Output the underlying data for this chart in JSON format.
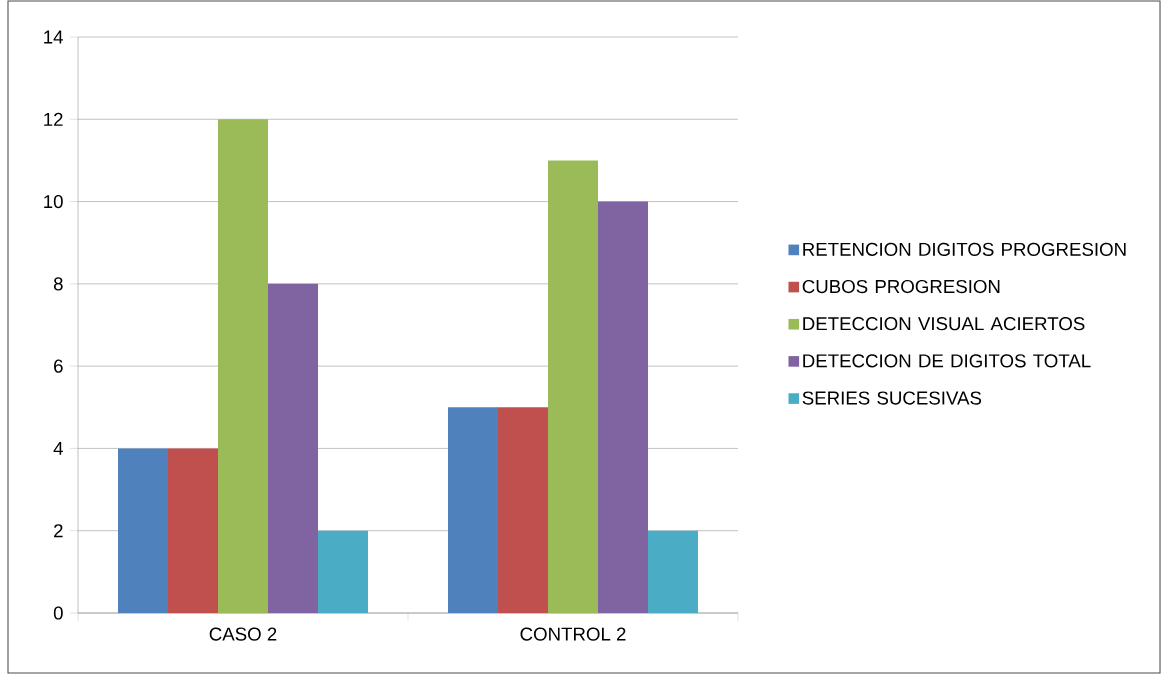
{
  "chart_data": {
    "type": "bar",
    "categories": [
      "CASO 2",
      "CONTROL 2"
    ],
    "series": [
      {
        "name": "RETENCION DIGITOS PROGRESION",
        "color": "#4f81bd",
        "values": [
          4,
          5
        ]
      },
      {
        "name": "CUBOS PROGRESION",
        "color": "#c0504d",
        "values": [
          4,
          5
        ]
      },
      {
        "name": "DETECCION VISUAL ACIERTOS",
        "color": "#9bbb59",
        "values": [
          12,
          11
        ]
      },
      {
        "name": "DETECCION DE DIGITOS TOTAL",
        "color": "#8064a2",
        "values": [
          8,
          10
        ]
      },
      {
        "name": "SERIES SUCESIVAS",
        "color": "#4bacc6",
        "values": [
          2,
          2
        ]
      }
    ],
    "ylim": [
      0,
      14
    ],
    "yticks": [
      0,
      2,
      4,
      6,
      8,
      10,
      12,
      14
    ],
    "grid": "y",
    "legend": "right"
  }
}
